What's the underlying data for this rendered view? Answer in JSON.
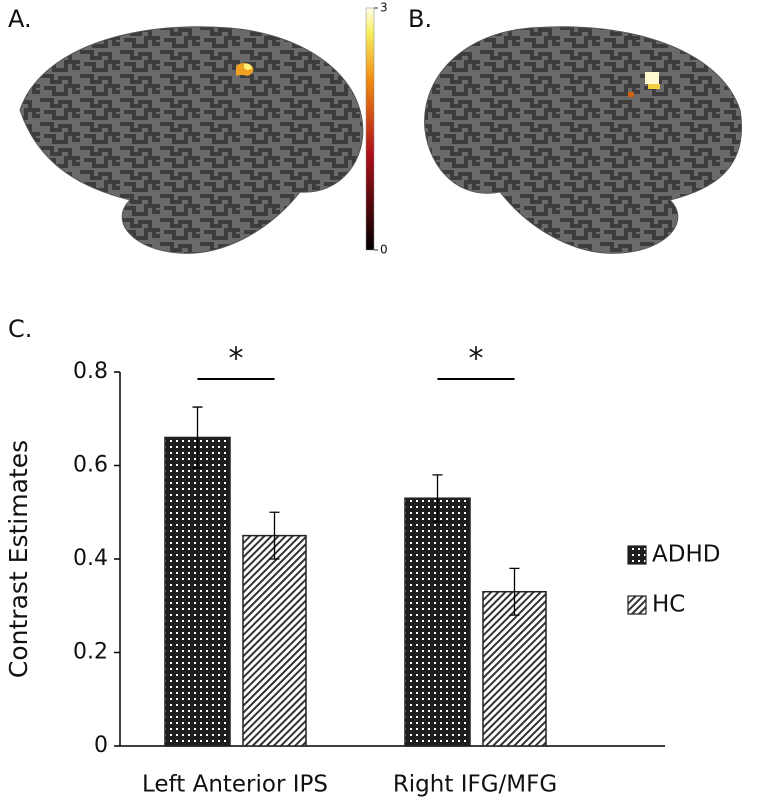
{
  "brain_panels": {
    "labels": [
      "A.",
      "B."
    ],
    "colorbar": {
      "lim": [
        0,
        3
      ],
      "ticks": [
        3,
        0
      ]
    }
  },
  "chart_data": {
    "type": "bar",
    "panel_label": "C.",
    "ylabel": "Contrast Estimates",
    "categories": [
      "Left Anterior IPS",
      "Right IFG/MFG"
    ],
    "series": [
      {
        "name": "ADHD",
        "color": "#222222",
        "pattern": "crosshatch",
        "values": [
          0.66,
          0.53
        ],
        "errors": [
          0.065,
          0.05
        ]
      },
      {
        "name": "HC",
        "color": "#222222",
        "pattern": "diagonal",
        "values": [
          0.45,
          0.33
        ],
        "errors": [
          0.05,
          0.05
        ]
      }
    ],
    "significance": [
      "*",
      "*"
    ],
    "ylim": [
      0,
      0.8
    ],
    "yticks": [
      0,
      0.2,
      0.4,
      0.6,
      0.8
    ],
    "grid": false,
    "legend": "right"
  }
}
